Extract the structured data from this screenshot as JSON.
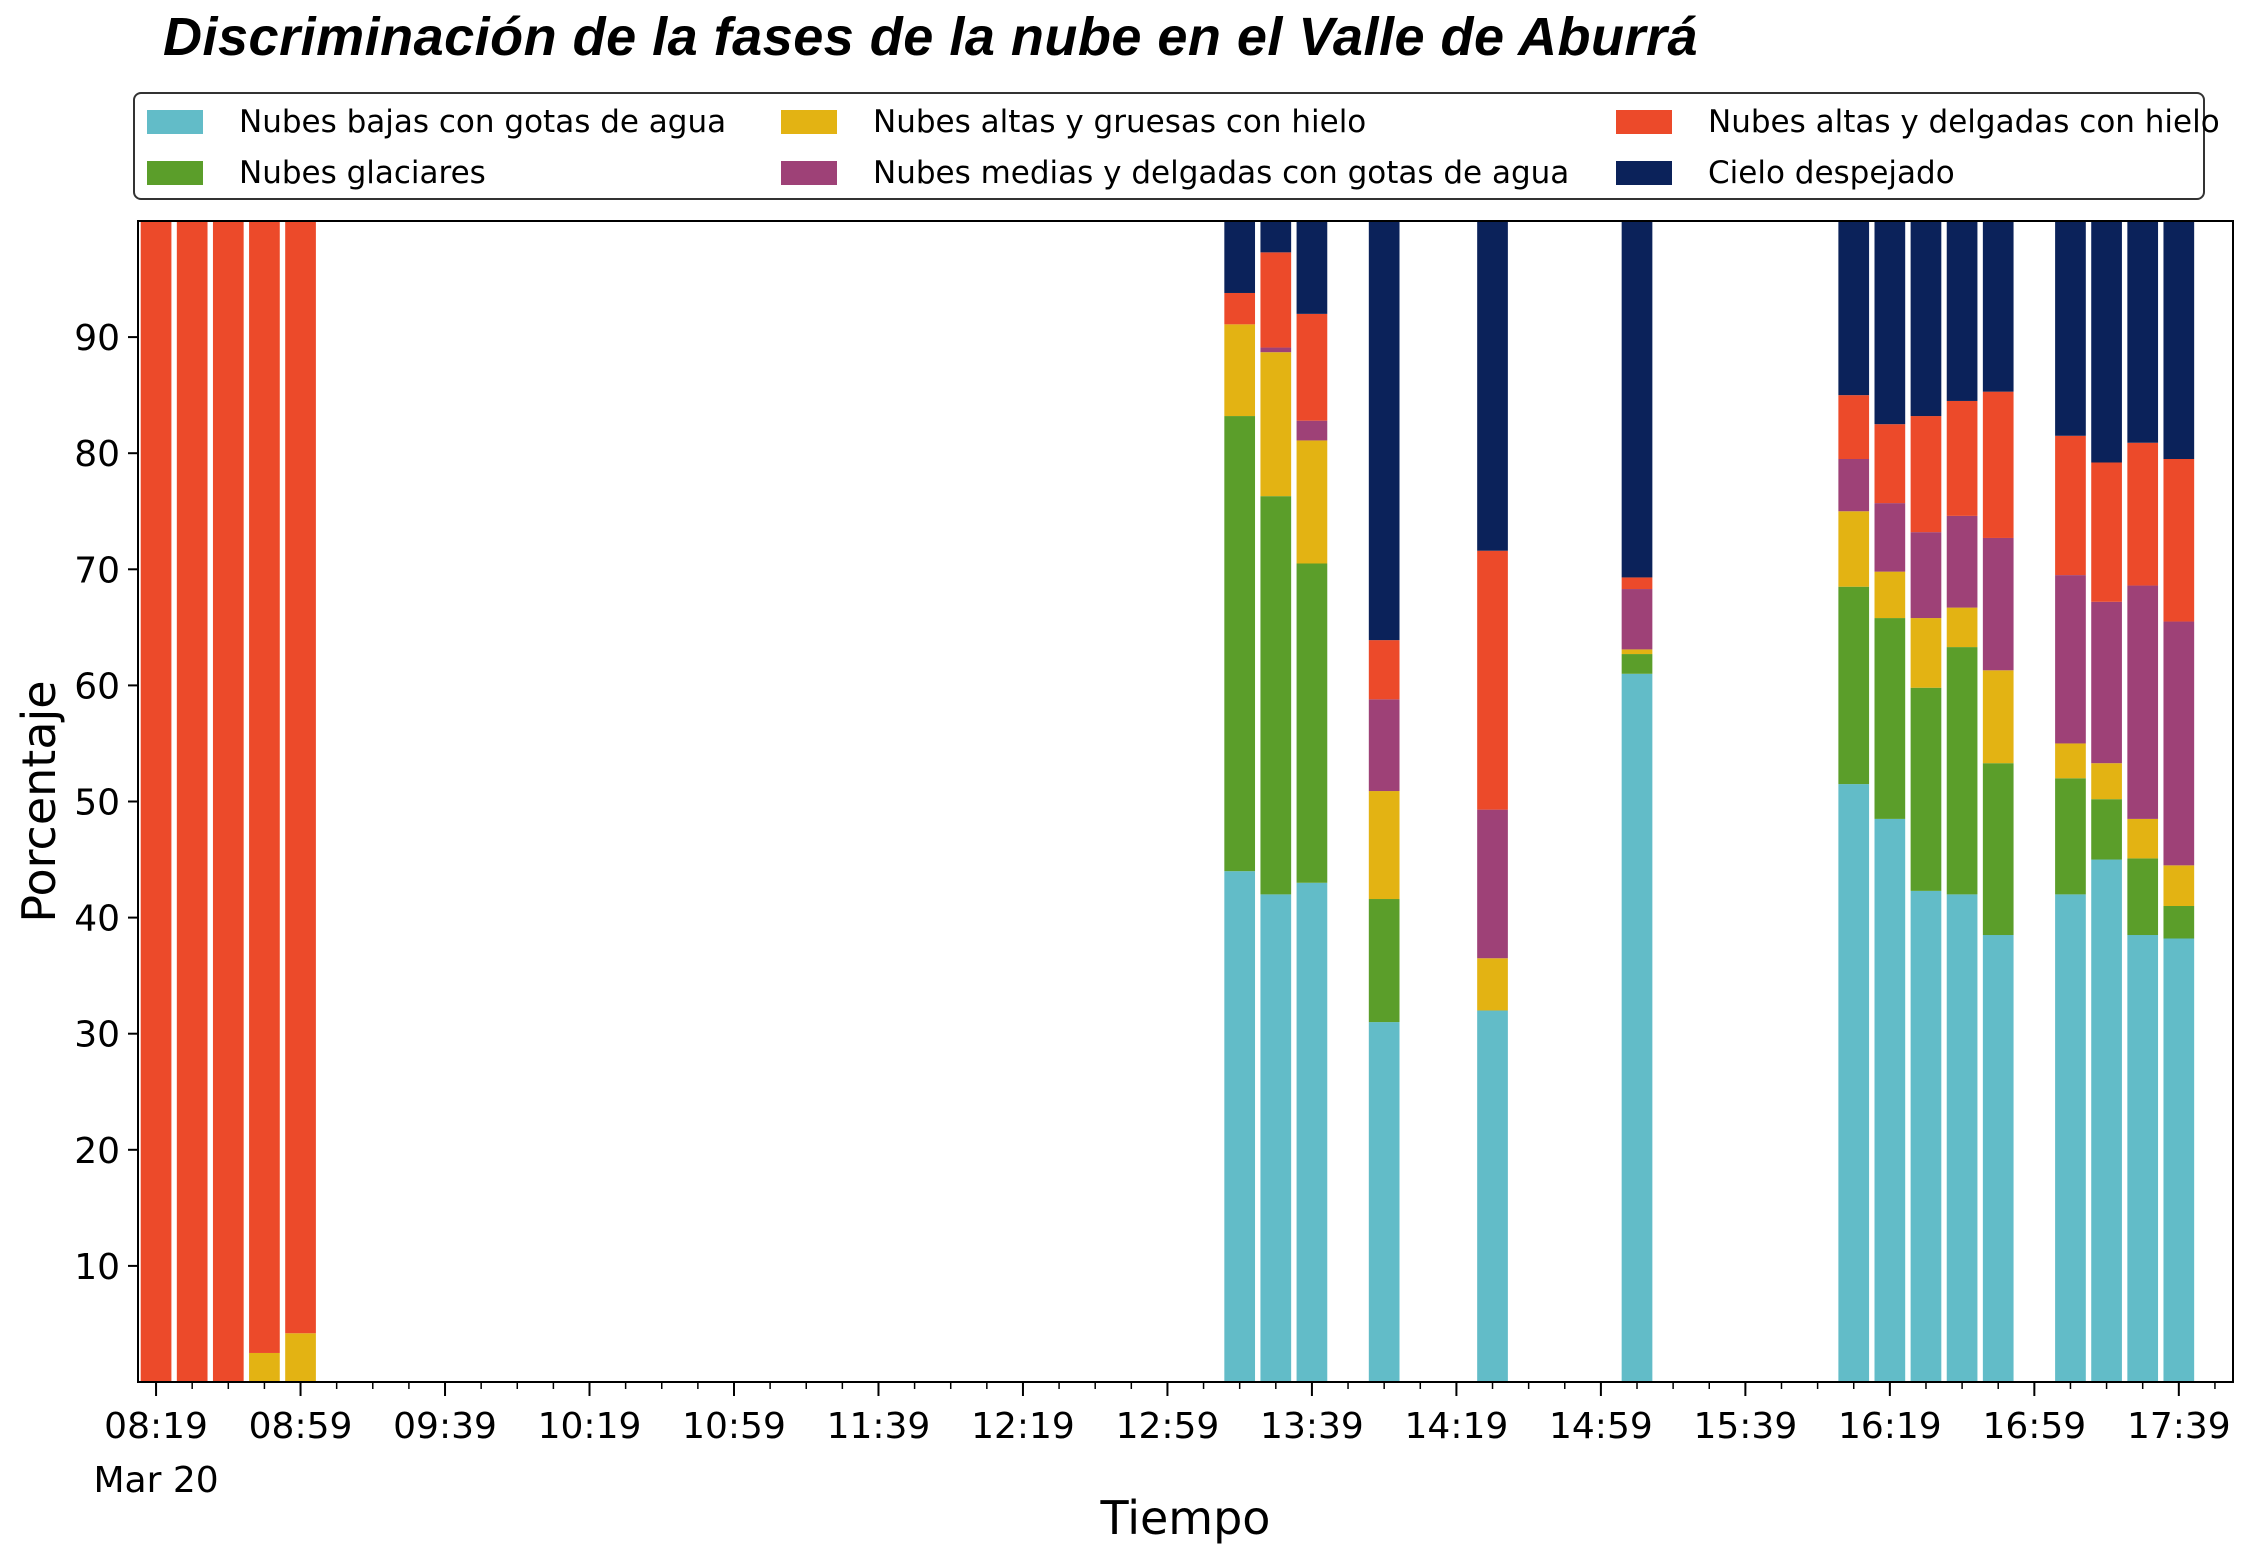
{
  "chart_data": {
    "type": "bar",
    "stacked": true,
    "title": "Discriminación de la fases de la nube en el Valle de Aburrá",
    "xlabel": "Tiempo",
    "ylabel": "Porcentaje",
    "ylim": [
      0,
      100
    ],
    "yticks": [
      10,
      20,
      30,
      40,
      50,
      60,
      70,
      80,
      90
    ],
    "x_major_ticks": [
      "08:19",
      "08:59",
      "09:39",
      "10:19",
      "10:59",
      "11:39",
      "12:19",
      "12:59",
      "13:39",
      "14:19",
      "14:59",
      "15:39",
      "16:19",
      "16:59",
      "17:39"
    ],
    "x_date_label": "Mar 20",
    "x_range": [
      "08:14",
      "17:54"
    ],
    "bar_width_minutes": 8.5,
    "legend": {
      "placement": "top",
      "columns": 3
    },
    "grid": false,
    "categories": [
      "08:19",
      "08:29",
      "08:39",
      "08:49",
      "08:59",
      "13:19",
      "13:29",
      "13:39",
      "13:59",
      "14:29",
      "15:09",
      "16:09",
      "16:19",
      "16:29",
      "16:39",
      "16:49",
      "17:09",
      "17:19",
      "17:29",
      "17:39"
    ],
    "series": [
      {
        "name": "Nubes bajas con gotas de agua",
        "color": "#62bcc8",
        "values": [
          0,
          0,
          0,
          0,
          0,
          44,
          42,
          43,
          31,
          32,
          61,
          51.5,
          48.5,
          42.3,
          42,
          38.5,
          42,
          45,
          38.5,
          38.2
        ]
      },
      {
        "name": "Nubes glaciares",
        "color": "#5b9e2a",
        "values": [
          0,
          0,
          0,
          0,
          0,
          39.2,
          34.3,
          27.5,
          10.6,
          0,
          1.7,
          17,
          17.3,
          17.5,
          21.3,
          14.8,
          10,
          5.2,
          6.6,
          2.8
        ]
      },
      {
        "name": "Nubes altas y gruesas con hielo",
        "color": "#e3b313",
        "values": [
          0,
          0,
          0,
          2.5,
          4.2,
          7.9,
          12.4,
          10.6,
          9.3,
          4.5,
          0.4,
          6.5,
          4,
          6,
          3.4,
          8,
          3,
          3.1,
          3.4,
          3.5
        ]
      },
      {
        "name": "Nubes medias y delgadas con gotas de agua",
        "color": "#9e4177",
        "values": [
          0,
          0,
          0,
          0,
          0,
          0,
          0.4,
          1.7,
          7.9,
          12.8,
          5.2,
          4.5,
          5.9,
          7.4,
          7.9,
          11.4,
          14.5,
          13.9,
          20.1,
          21
        ]
      },
      {
        "name": "Nubes altas y delgadas con hielo",
        "color": "#ec4a2a",
        "values": [
          100,
          100,
          100,
          97.5,
          95.8,
          2.7,
          8.2,
          9.2,
          5.1,
          22.3,
          1,
          5.5,
          6.8,
          10,
          9.9,
          12.6,
          12,
          12,
          12.3,
          14
        ]
      },
      {
        "name": "Cielo despejado",
        "color": "#0b225a",
        "values": [
          0,
          0,
          0,
          0,
          0,
          6.2,
          2.7,
          8,
          36.1,
          28.4,
          30.7,
          15,
          17.5,
          16.8,
          15.5,
          14.7,
          18.5,
          20.8,
          19.1,
          20.5
        ]
      }
    ]
  }
}
